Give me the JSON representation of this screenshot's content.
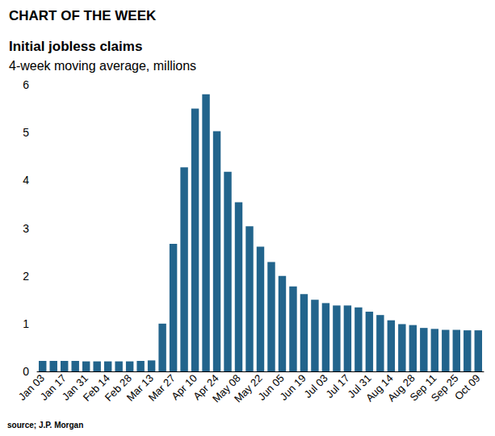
{
  "chart_data": {
    "type": "bar",
    "title": "Initial jobless claims",
    "subtitle": "4-week moving average, millions",
    "annotations": [
      "CHART OF THE WEEK",
      "source; J.P. Morgan"
    ],
    "categories": [
      "Jan 03",
      null,
      "Jan 17",
      null,
      "Jan 31",
      null,
      "Feb 14",
      null,
      "Feb 28",
      null,
      "Mar 13",
      null,
      "Mar 27",
      null,
      "Apr 10",
      null,
      "Apr 24",
      null,
      "May 08",
      null,
      "May 22",
      null,
      "Jun 05",
      null,
      "Jun 19",
      null,
      "Jul 03",
      null,
      "Jul 17",
      null,
      "Jul 31",
      null,
      "Aug 14",
      null,
      "Aug 28",
      null,
      "Sep 11",
      null,
      "Sep 25",
      null,
      "Oct 09"
    ],
    "values": [
      0.22,
      0.22,
      0.22,
      0.22,
      0.21,
      0.21,
      0.21,
      0.21,
      0.21,
      0.22,
      0.23,
      1.0,
      2.67,
      4.27,
      5.5,
      5.8,
      5.03,
      4.18,
      3.54,
      3.04,
      2.61,
      2.29,
      2.0,
      1.78,
      1.62,
      1.5,
      1.43,
      1.38,
      1.38,
      1.34,
      1.25,
      1.18,
      1.07,
      0.99,
      0.97,
      0.91,
      0.89,
      0.87,
      0.87,
      0.86,
      0.86
    ],
    "color": "#22648c",
    "ylim": [
      0,
      6
    ],
    "yticks": [
      0,
      1,
      2,
      3,
      4,
      5,
      6
    ],
    "grid": false
  }
}
